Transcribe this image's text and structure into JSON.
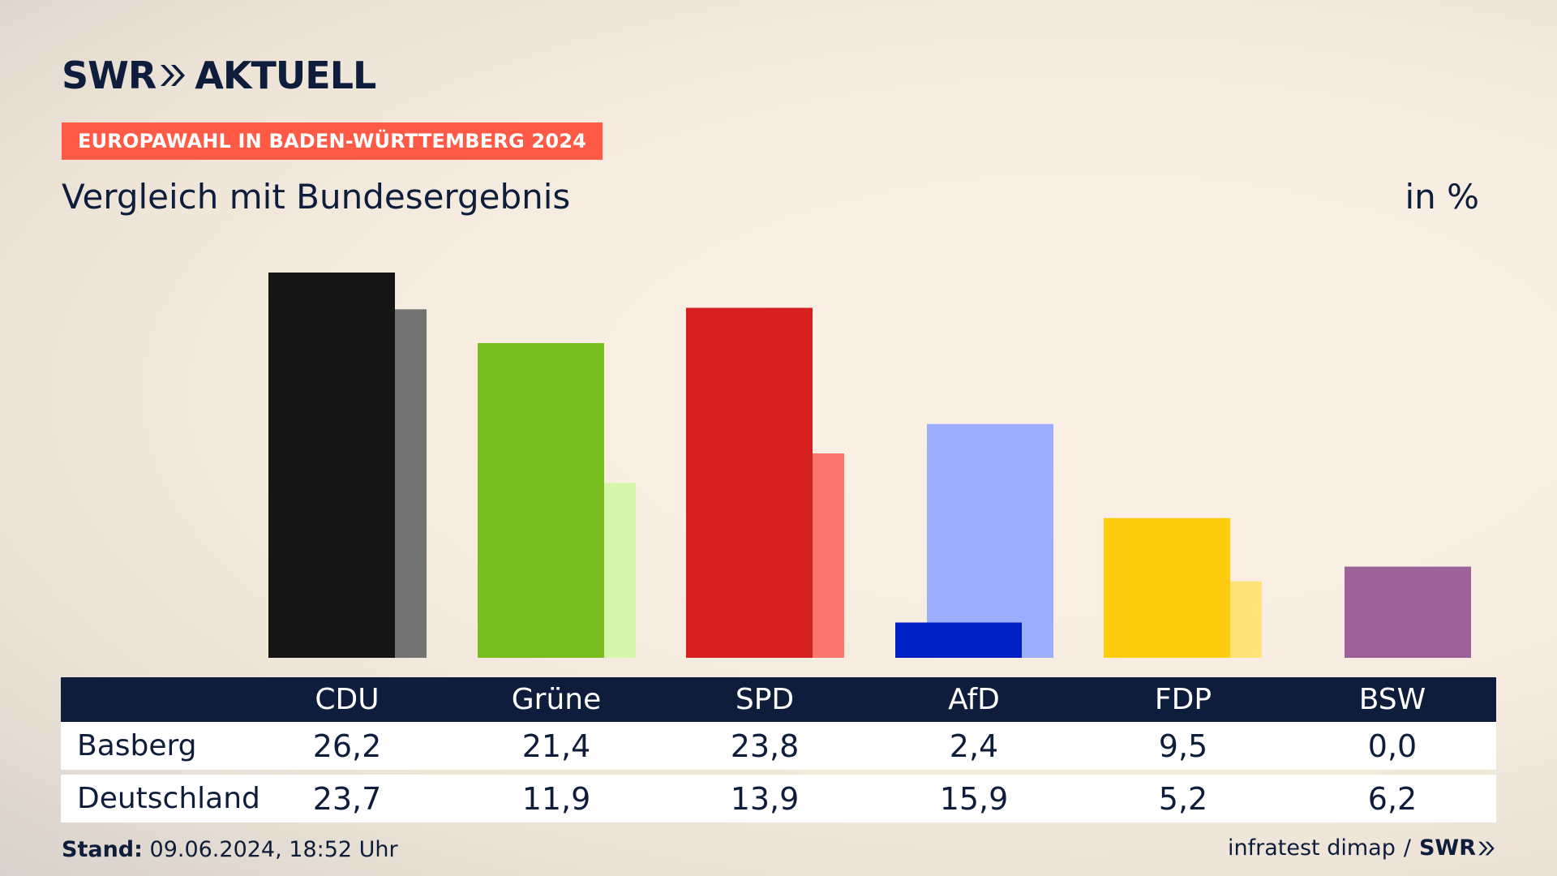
{
  "brand": {
    "logo_text_1": "SWR",
    "logo_text_2": "AKTUELL"
  },
  "banner": "EUROPAWAHL IN BADEN-WÜRTTEMBERG 2024",
  "subtitle": "Vergleich mit Bundesergebnis",
  "unit": "in %",
  "table": {
    "headers": [
      "CDU",
      "Grüne",
      "SPD",
      "AfD",
      "FDP",
      "BSW"
    ],
    "rows": [
      {
        "label": "Basberg",
        "values": [
          "26,2",
          "21,4",
          "23,8",
          "2,4",
          "9,5",
          "0,0"
        ]
      },
      {
        "label": "Deutschland",
        "values": [
          "23,7",
          "11,9",
          "13,9",
          "15,9",
          "5,2",
          "6,2"
        ]
      }
    ]
  },
  "footer": {
    "stand_label": "Stand:",
    "stand_value": "09.06.2024, 18:52 Uhr",
    "source": "infratest dimap",
    "separator": "/",
    "source_brand": "SWR"
  },
  "chart_data": {
    "type": "bar",
    "categories": [
      "CDU",
      "Grüne",
      "SPD",
      "AfD",
      "FDP",
      "BSW"
    ],
    "series": [
      {
        "name": "Basberg",
        "values": [
          26.2,
          21.4,
          23.8,
          2.4,
          9.5,
          0.0
        ],
        "colors": [
          "#151515",
          "#78be1e",
          "#d61f1f",
          "#0021c4",
          "#ffcc0f",
          "#9c6196"
        ]
      },
      {
        "name": "Deutschland",
        "values": [
          23.7,
          11.9,
          13.9,
          15.9,
          5.2,
          6.2
        ],
        "colors": [
          "#737373",
          "#d6f6ac",
          "#ff7570",
          "#9daeff",
          "#ffe27a",
          "#9c6196"
        ]
      }
    ],
    "ylim": [
      0,
      26.2
    ]
  }
}
